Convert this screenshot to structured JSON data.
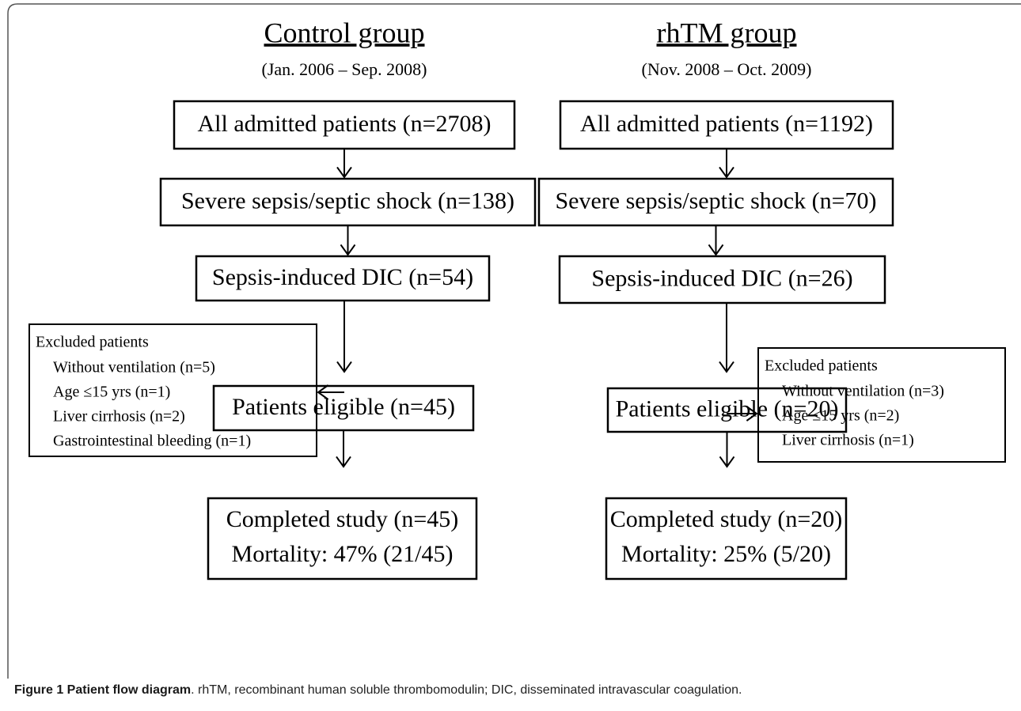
{
  "groups": [
    {
      "title": "Control group",
      "period": "(Jan. 2006 – Sep. 2008)",
      "steps": [
        "All admitted patients (n=2708)",
        "Severe sepsis/septic shock (n=138)",
        "Sepsis-induced DIC (n=54)",
        "Patients eligible (n=45)"
      ],
      "excluded": {
        "title": "Excluded patients",
        "items": [
          "Without ventilation (n=5)",
          "Age ≤15 yrs (n=1)",
          "Liver cirrhosis (n=2)",
          "Gastrointestinal bleeding (n=1)"
        ]
      },
      "final": [
        "Completed study (n=45)",
        "Mortality: 47% (21/45)"
      ]
    },
    {
      "title": "rhTM group",
      "period": "(Nov. 2008 – Oct. 2009)",
      "steps": [
        "All admitted patients (n=1192)",
        "Severe sepsis/septic shock (n=70)",
        "Sepsis-induced DIC (n=26)",
        "Patients eligible (n=20)"
      ],
      "excluded": {
        "title": "Excluded patients",
        "items": [
          "Without ventilation (n=3)",
          "Age ≤15 yrs (n=2)",
          "Liver cirrhosis (n=1)"
        ]
      },
      "final": [
        "Completed study (n=20)",
        "Mortality: 25% (5/20)"
      ]
    }
  ],
  "caption": {
    "label": "Figure 1 Patient flow diagram",
    "text": ". rhTM, recombinant human soluble thrombomodulin; DIC, disseminated intravascular coagulation."
  }
}
